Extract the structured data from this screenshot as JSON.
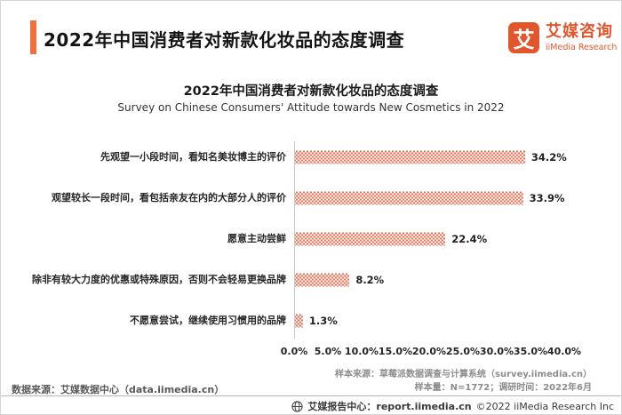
{
  "header": {
    "title": "2022年中国消费者对新款化妆品的态度调查",
    "logo": {
      "mark": "艾",
      "name_cn": "艾媒咨询",
      "name_en": "iiMedia Research",
      "color": "#e2562d"
    }
  },
  "chart_data": {
    "type": "bar",
    "orientation": "horizontal",
    "title": "2022年中国消费者对新款化妆品的态度调查",
    "subtitle": "Survey on Chinese Consumers' Attitude towards New Cosmetics in 2022",
    "categories": [
      "先观望一小段时间，看知名美妆博主的评价",
      "观望较长一段时间，看包括亲友在内的大部分人的评价",
      "愿意主动尝鲜",
      "除非有较大力度的优惠或特殊原因，否则不会轻易更换品牌",
      "不愿意尝试，继续使用习惯用的品牌"
    ],
    "values": [
      34.2,
      33.9,
      22.4,
      8.2,
      1.3
    ],
    "value_labels": [
      "34.2%",
      "33.9%",
      "22.4%",
      "8.2%",
      "1.3%"
    ],
    "xlim": [
      0,
      40
    ],
    "x_ticks_values": [
      0,
      5,
      10,
      15,
      20,
      25,
      30,
      35,
      40
    ],
    "x_ticks": [
      "0.0%",
      "5.0%",
      "10.0%",
      "15.0%",
      "20.0%",
      "25.0%",
      "30.0%",
      "35.0%",
      "40.0%"
    ],
    "bar_color": "#e56f50",
    "bar_pattern": "dotted",
    "grid": false,
    "legend": false
  },
  "notes": {
    "sample_source": "样本来源：草莓派数据调查与计算系统（survey.iimedia.cn）",
    "sample_size": "样本量：N=1772；调研时间：2022年6月",
    "data_source": "数据来源：艾媒数据中心（data.iimedia.cn）"
  },
  "footer": {
    "report_center": "艾媒报告中心：report.iimedia.cn",
    "copyright": "©2022  iiMedia Research Inc"
  }
}
